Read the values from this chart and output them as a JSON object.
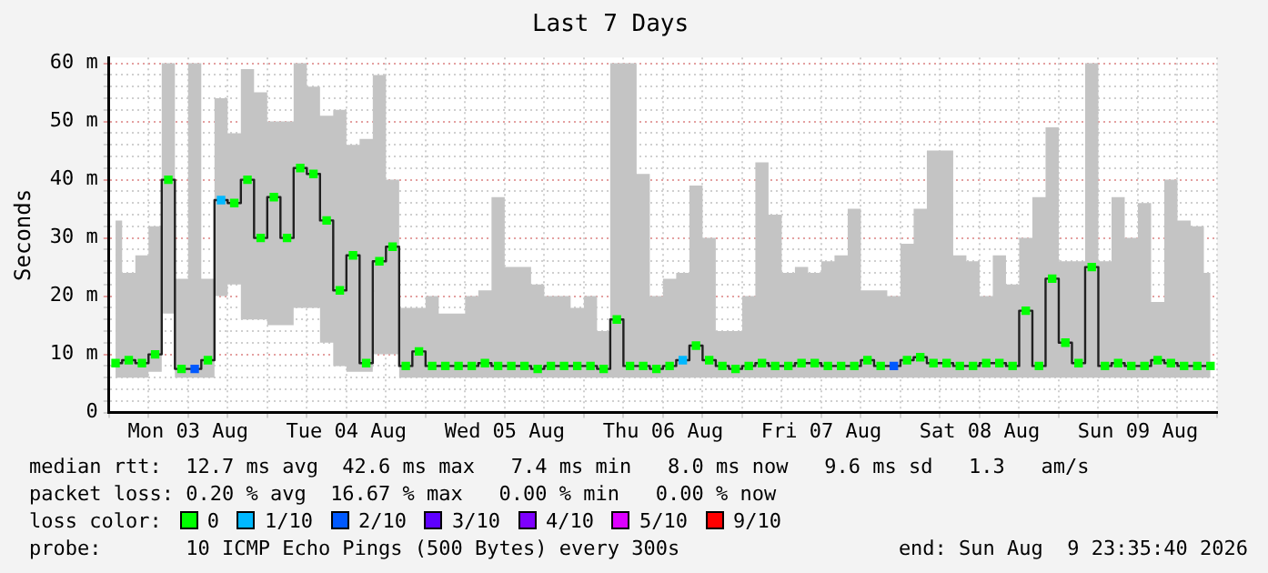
{
  "chart_data": {
    "type": "step",
    "title": "Last 7 Days",
    "ylabel": "Seconds",
    "x": [
      "2026-08-03T01:00",
      "2026-08-03T03:00",
      "2026-08-03T05:00",
      "2026-08-03T07:00",
      "2026-08-03T09:00",
      "2026-08-03T11:00",
      "2026-08-03T13:00",
      "2026-08-03T15:00",
      "2026-08-03T17:00",
      "2026-08-03T19:00",
      "2026-08-03T21:00",
      "2026-08-03T23:00",
      "2026-08-04T01:00",
      "2026-08-04T03:00",
      "2026-08-04T05:00",
      "2026-08-04T07:00",
      "2026-08-04T09:00",
      "2026-08-04T11:00",
      "2026-08-04T13:00",
      "2026-08-04T15:00",
      "2026-08-04T17:00",
      "2026-08-04T19:00",
      "2026-08-04T21:00",
      "2026-08-04T23:00",
      "2026-08-05T01:00",
      "2026-08-05T03:00",
      "2026-08-05T05:00",
      "2026-08-05T07:00",
      "2026-08-05T09:00",
      "2026-08-05T11:00",
      "2026-08-05T13:00",
      "2026-08-05T15:00",
      "2026-08-05T17:00",
      "2026-08-05T19:00",
      "2026-08-05T21:00",
      "2026-08-05T23:00",
      "2026-08-06T01:00",
      "2026-08-06T03:00",
      "2026-08-06T05:00",
      "2026-08-06T07:00",
      "2026-08-06T09:00",
      "2026-08-06T11:00",
      "2026-08-06T13:00",
      "2026-08-06T15:00",
      "2026-08-06T17:00",
      "2026-08-06T19:00",
      "2026-08-06T21:00",
      "2026-08-06T23:00",
      "2026-08-07T01:00",
      "2026-08-07T03:00",
      "2026-08-07T05:00",
      "2026-08-07T07:00",
      "2026-08-07T09:00",
      "2026-08-07T11:00",
      "2026-08-07T13:00",
      "2026-08-07T15:00",
      "2026-08-07T17:00",
      "2026-08-07T19:00",
      "2026-08-07T21:00",
      "2026-08-07T23:00",
      "2026-08-08T01:00",
      "2026-08-08T03:00",
      "2026-08-08T05:00",
      "2026-08-08T07:00",
      "2026-08-08T09:00",
      "2026-08-08T11:00",
      "2026-08-08T13:00",
      "2026-08-08T15:00",
      "2026-08-08T17:00",
      "2026-08-08T19:00",
      "2026-08-08T21:00",
      "2026-08-08T23:00",
      "2026-08-09T01:00",
      "2026-08-09T03:00",
      "2026-08-09T05:00",
      "2026-08-09T07:00",
      "2026-08-09T09:00",
      "2026-08-09T11:00",
      "2026-08-09T13:00",
      "2026-08-09T15:00",
      "2026-08-09T17:00",
      "2026-08-09T19:00",
      "2026-08-09T21:00",
      "2026-08-09T23:00"
    ],
    "series": [
      {
        "color": "#202020",
        "values": [
          8.5,
          9,
          8.5,
          10,
          40,
          7.5,
          7.5,
          9,
          36.5,
          36,
          40,
          30,
          37,
          30,
          42,
          41,
          33,
          21,
          27,
          8.5,
          26,
          28.5,
          8,
          10.5,
          8,
          8,
          8,
          8,
          8.5,
          8,
          8,
          8,
          7.5,
          8,
          8,
          8,
          8,
          7.5,
          16,
          8,
          8,
          7.5,
          8,
          9,
          11.5,
          9,
          8,
          7.5,
          8,
          8.5,
          8,
          8,
          8.5,
          8.5,
          8,
          8,
          8,
          9,
          8,
          8,
          9,
          9.5,
          8.5,
          8.5,
          8,
          8,
          8.5,
          8.5,
          8,
          17.5,
          8,
          23,
          12,
          8.5,
          25,
          8,
          8.5,
          8,
          8,
          9,
          8.5,
          8,
          8,
          8
        ],
        "lower": [
          6,
          6,
          6,
          7,
          17,
          6,
          6,
          6,
          20,
          22,
          16,
          16,
          15,
          15,
          18,
          18,
          12,
          8,
          7,
          7,
          10,
          10,
          6,
          6,
          6,
          6,
          6,
          6,
          6,
          6,
          6,
          6,
          6,
          6,
          6,
          6,
          6,
          6,
          6,
          6,
          6,
          6,
          6,
          6,
          6,
          6,
          6,
          6,
          6,
          6,
          6,
          6,
          6,
          6,
          6,
          6,
          6,
          6,
          6,
          6,
          6,
          6,
          6,
          6,
          6,
          6,
          6,
          6,
          6,
          6,
          6,
          6,
          6,
          6,
          6,
          6,
          6,
          6,
          6,
          6,
          6,
          6,
          6,
          6
        ],
        "upper": [
          33,
          24,
          27,
          32,
          60,
          23,
          60,
          23,
          54,
          48,
          59,
          55,
          50,
          50,
          60,
          56,
          51,
          52,
          46,
          47,
          58,
          40,
          18,
          18,
          20,
          17,
          17,
          20,
          21,
          37,
          25,
          25,
          22,
          20,
          20,
          18,
          20,
          14,
          60,
          60,
          41,
          20,
          23,
          24,
          39,
          30,
          14,
          14,
          20,
          43,
          34,
          24,
          25,
          24,
          26,
          27,
          35,
          21,
          21,
          20,
          29,
          35,
          45,
          45,
          27,
          26,
          20,
          27,
          22,
          30,
          37,
          49,
          26,
          26,
          60,
          26,
          37,
          30,
          36,
          19,
          40,
          33,
          32,
          24
        ]
      },
      {
        "type": "scatter",
        "name": "0",
        "color": "#00ff00",
        "marker": "square",
        "values": [
          8.5,
          9,
          8.5,
          10,
          40,
          7.5,
          null,
          9,
          null,
          36,
          40,
          30,
          37,
          30,
          42,
          41,
          33,
          21,
          27,
          8.5,
          26,
          28.5,
          8,
          10.5,
          8,
          8,
          8,
          8,
          8.5,
          8,
          8,
          8,
          7.5,
          8,
          8,
          8,
          8,
          7.5,
          16,
          8,
          8,
          7.5,
          8,
          null,
          11.5,
          9,
          8,
          7.5,
          8,
          8.5,
          8,
          8,
          8.5,
          8.5,
          8,
          8,
          8,
          9,
          8,
          null,
          9,
          9.5,
          8.5,
          8.5,
          8,
          8,
          8.5,
          8.5,
          8,
          17.5,
          8,
          23,
          12,
          8.5,
          25,
          8,
          8.5,
          8,
          8,
          9,
          8.5,
          8,
          8,
          8
        ]
      },
      {
        "type": "scatter",
        "name": "1/10",
        "color": "#00b8ff",
        "marker": "square",
        "x": [
          "2026-08-03T17:00",
          "2026-08-06T15:00"
        ],
        "values": [
          36.5,
          9
        ]
      },
      {
        "type": "scatter",
        "name": "2/10",
        "color": "#0059ff",
        "marker": "square",
        "x": [
          "2026-08-03T13:00",
          "2026-08-07T23:00"
        ],
        "values": [
          7.5,
          8
        ]
      },
      {
        "type": "scatter",
        "name": "3/10",
        "color": "#5e00ff",
        "marker": "square",
        "values": [
          null,
          null,
          null,
          null,
          null,
          null,
          null,
          null,
          null,
          null,
          null,
          null,
          null,
          null,
          null,
          null,
          null,
          null,
          null,
          null,
          null,
          null,
          null,
          null,
          null,
          null,
          null,
          null,
          null,
          null,
          null,
          null,
          null,
          null,
          null,
          null,
          null,
          null,
          null,
          null,
          null,
          null,
          null,
          null,
          null,
          null,
          null,
          null,
          null,
          null,
          null,
          null,
          null,
          null,
          null,
          null,
          null,
          null,
          null,
          null,
          null,
          null,
          null,
          null,
          null,
          null,
          null,
          null,
          null,
          null,
          null,
          null,
          null,
          null,
          null,
          null,
          null,
          null,
          null,
          null,
          null,
          null,
          null,
          null
        ]
      },
      {
        "type": "scatter",
        "name": "4/10",
        "color": "#7e00ff",
        "marker": "square",
        "values": [
          null,
          null,
          null,
          null,
          null,
          null,
          null,
          null,
          null,
          null,
          null,
          null,
          null,
          null,
          null,
          null,
          null,
          null,
          null,
          null,
          null,
          null,
          null,
          null,
          null,
          null,
          null,
          null,
          null,
          null,
          null,
          null,
          null,
          null,
          null,
          null,
          null,
          null,
          null,
          null,
          null,
          null,
          null,
          null,
          null,
          null,
          null,
          null,
          null,
          null,
          null,
          null,
          null,
          null,
          null,
          null,
          null,
          null,
          null,
          null,
          null,
          null,
          null,
          null,
          null,
          null,
          null,
          null,
          null,
          null,
          null,
          null,
          null,
          null,
          null,
          null,
          null,
          null,
          null,
          null,
          null,
          null,
          null,
          null
        ]
      },
      {
        "type": "scatter",
        "name": "5/10",
        "color": "#dd00ff",
        "marker": "square",
        "values": [
          null,
          null,
          null,
          null,
          null,
          null,
          null,
          null,
          null,
          null,
          null,
          null,
          null,
          null,
          null,
          null,
          null,
          null,
          null,
          null,
          null,
          null,
          null,
          null,
          null,
          null,
          null,
          null,
          null,
          null,
          null,
          null,
          null,
          null,
          null,
          null,
          null,
          null,
          null,
          null,
          null,
          null,
          null,
          null,
          null,
          null,
          null,
          null,
          null,
          null,
          null,
          null,
          null,
          null,
          null,
          null,
          null,
          null,
          null,
          null,
          null,
          null,
          null,
          null,
          null,
          null,
          null,
          null,
          null,
          null,
          null,
          null,
          null,
          null,
          null,
          null,
          null,
          null,
          null,
          null,
          null,
          null,
          null,
          null
        ]
      },
      {
        "type": "scatter",
        "name": "9/10",
        "color": "#ff0000",
        "marker": "square",
        "values": [
          null,
          null,
          null,
          null,
          null,
          null,
          null,
          null,
          null,
          null,
          null,
          null,
          null,
          null,
          null,
          null,
          null,
          null,
          null,
          null,
          null,
          null,
          null,
          null,
          null,
          null,
          null,
          null,
          null,
          null,
          null,
          null,
          null,
          null,
          null,
          null,
          null,
          null,
          null,
          null,
          null,
          null,
          null,
          null,
          null,
          null,
          null,
          null,
          null,
          null,
          null,
          null,
          null,
          null,
          null,
          null,
          null,
          null,
          null,
          null,
          null,
          null,
          null,
          null,
          null,
          null,
          null,
          null,
          null,
          null,
          null,
          null,
          null,
          null,
          null,
          null,
          null,
          null,
          null,
          null,
          null,
          null,
          null,
          null
        ]
      }
    ],
    "xlim": [
      "2026-08-03T00:00",
      "2026-08-10T00:00"
    ],
    "xticks": [
      {
        "value": "2026-08-03T00:00",
        "label": null
      },
      {
        "value": "2026-08-03T06:00",
        "label": null
      },
      {
        "value": "2026-08-03T12:00",
        "label": "Mon 03 Aug"
      },
      {
        "value": "2026-08-03T18:00",
        "label": null
      },
      {
        "value": "2026-08-04T00:00",
        "label": null
      },
      {
        "value": "2026-08-04T06:00",
        "label": null
      },
      {
        "value": "2026-08-04T12:00",
        "label": "Tue 04 Aug"
      },
      {
        "value": "2026-08-04T18:00",
        "label": null
      },
      {
        "value": "2026-08-05T00:00",
        "label": null
      },
      {
        "value": "2026-08-05T06:00",
        "label": null
      },
      {
        "value": "2026-08-05T12:00",
        "label": "Wed 05 Aug"
      },
      {
        "value": "2026-08-05T18:00",
        "label": null
      },
      {
        "value": "2026-08-06T00:00",
        "label": null
      },
      {
        "value": "2026-08-06T06:00",
        "label": null
      },
      {
        "value": "2026-08-06T12:00",
        "label": "Thu 06 Aug"
      },
      {
        "value": "2026-08-06T18:00",
        "label": null
      },
      {
        "value": "2026-08-07T00:00",
        "label": null
      },
      {
        "value": "2026-08-07T06:00",
        "label": null
      },
      {
        "value": "2026-08-07T12:00",
        "label": "Fri 07 Aug"
      },
      {
        "value": "2026-08-07T18:00",
        "label": null
      },
      {
        "value": "2026-08-08T00:00",
        "label": null
      },
      {
        "value": "2026-08-08T06:00",
        "label": null
      },
      {
        "value": "2026-08-08T12:00",
        "label": "Sat 08 Aug"
      },
      {
        "value": "2026-08-08T18:00",
        "label": null
      },
      {
        "value": "2026-08-09T00:00",
        "label": null
      },
      {
        "value": "2026-08-09T06:00",
        "label": null
      },
      {
        "value": "2026-08-09T12:00",
        "label": "Sun 09 Aug"
      },
      {
        "value": "2026-08-09T18:00",
        "label": null
      },
      {
        "value": "2026-08-10T00:00",
        "label": null
      }
    ],
    "ylim": [
      0,
      61
    ],
    "yticks": [
      0,
      {
        "value": 2,
        "label": null
      },
      {
        "value": 4,
        "label": null
      },
      {
        "value": 6,
        "label": null
      },
      {
        "value": 8,
        "label": null
      },
      {
        "value": 10,
        "label": "10 m"
      },
      {
        "value": 12,
        "label": null
      },
      {
        "value": 14,
        "label": null
      },
      {
        "value": 16,
        "label": null
      },
      {
        "value": 18,
        "label": null
      },
      {
        "value": 20,
        "label": "20 m"
      },
      {
        "value": 22,
        "label": null
      },
      {
        "value": 24,
        "label": null
      },
      {
        "value": 26,
        "label": null
      },
      {
        "value": 28,
        "label": null
      },
      {
        "value": 30,
        "label": "30 m"
      },
      {
        "value": 32,
        "label": null
      },
      {
        "value": 34,
        "label": null
      },
      {
        "value": 36,
        "label": null
      },
      {
        "value": 38,
        "label": null
      },
      {
        "value": 40,
        "label": "40 m"
      },
      {
        "value": 42,
        "label": null
      },
      {
        "value": 44,
        "label": null
      },
      {
        "value": 46,
        "label": null
      },
      {
        "value": 48,
        "label": null
      },
      {
        "value": 50,
        "label": "50 m"
      },
      {
        "value": 52,
        "label": null
      },
      {
        "value": 54,
        "label": null
      },
      {
        "value": 56,
        "label": null
      },
      {
        "value": 58,
        "label": null
      },
      {
        "value": 60,
        "label": "60 m"
      }
    ],
    "grid": true,
    "legend": "bottom",
    "legend_title": "loss color:",
    "annotations": [
      "median rtt:  12.7 ms avg  42.6 ms max   7.4 ms min   8.0 ms now   9.6 ms sd   1.3   am/s",
      "packet loss: 0.20 % avg  16.67 % max   0.00 % min   0.00 % now",
      "probe:       10 ICMP Echo Pings (500 Bytes) every 300s",
      "end: Sun Aug  9 23:35:40 2026"
    ]
  }
}
